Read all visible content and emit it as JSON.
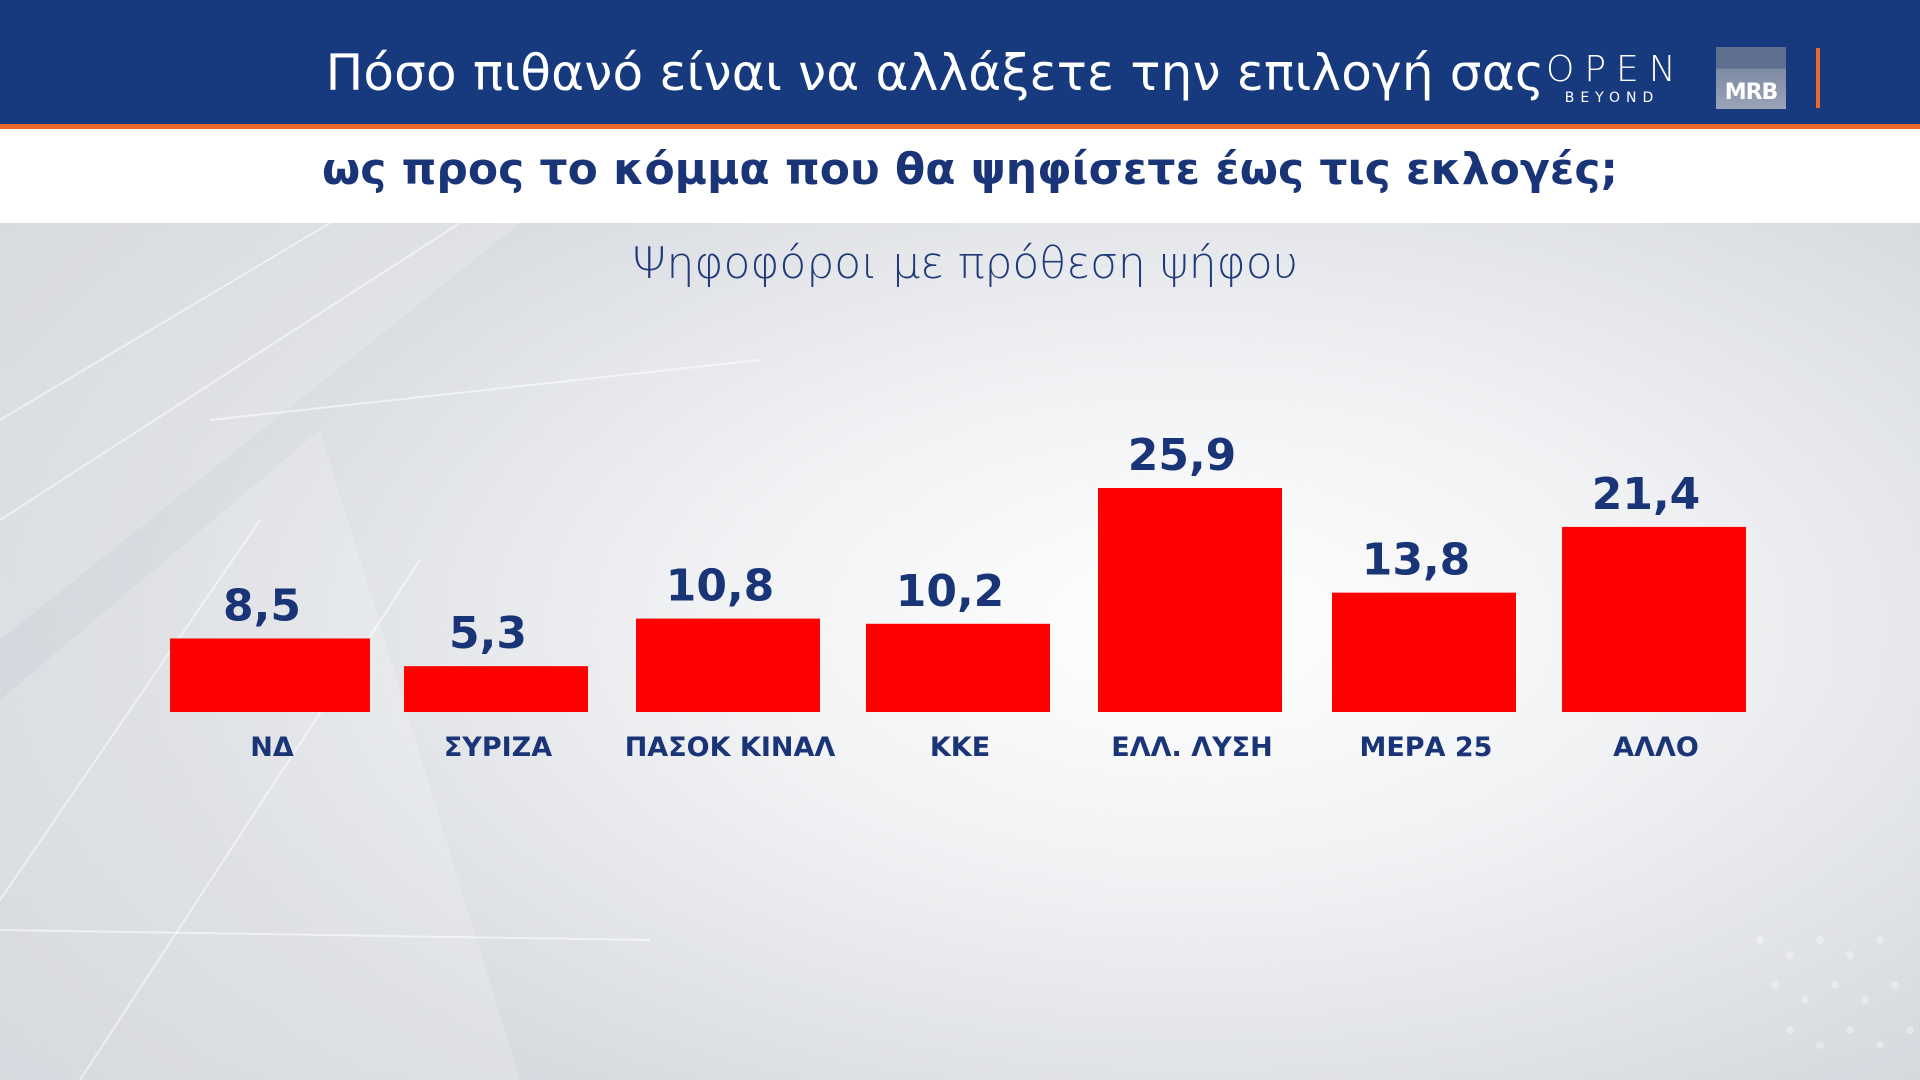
{
  "header": {
    "title_line1": "Πόσο πιθανό είναι να αλλάξετε την επιλογή σας",
    "title_line2": "ως προς το κόμμα που θα ψηφίσετε έως τις εκλογές;",
    "logo_open": "OPEN",
    "logo_open_sub": "BEYOND",
    "logo_mrb": "MRB",
    "colors": {
      "header_bg": "#173a7e",
      "accent_orange": "#e96a2b",
      "text_navy": "#1a3478",
      "bar_red": "#ff0000"
    }
  },
  "chart_data": {
    "type": "bar",
    "title": "Ψηφοφόροι με πρόθεση ψήφου",
    "categories": [
      "ΝΔ",
      "ΣΥΡΙΖΑ",
      "ΠΑΣΟΚ ΚΙΝΑΛ",
      "ΚΚΕ",
      "ΕΛΛ. ΛΥΣΗ",
      "ΜΕΡΑ 25",
      "ΑΛΛΟ"
    ],
    "values": [
      8.5,
      5.3,
      10.8,
      10.2,
      25.9,
      13.8,
      21.4
    ],
    "value_labels": [
      "8,5",
      "5,3",
      "10,8",
      "10,2",
      "25,9",
      "13,8",
      "21,4"
    ],
    "xlabel": "",
    "ylabel": "",
    "ylim": [
      0,
      25.9
    ],
    "grid": false,
    "legend": "none"
  }
}
